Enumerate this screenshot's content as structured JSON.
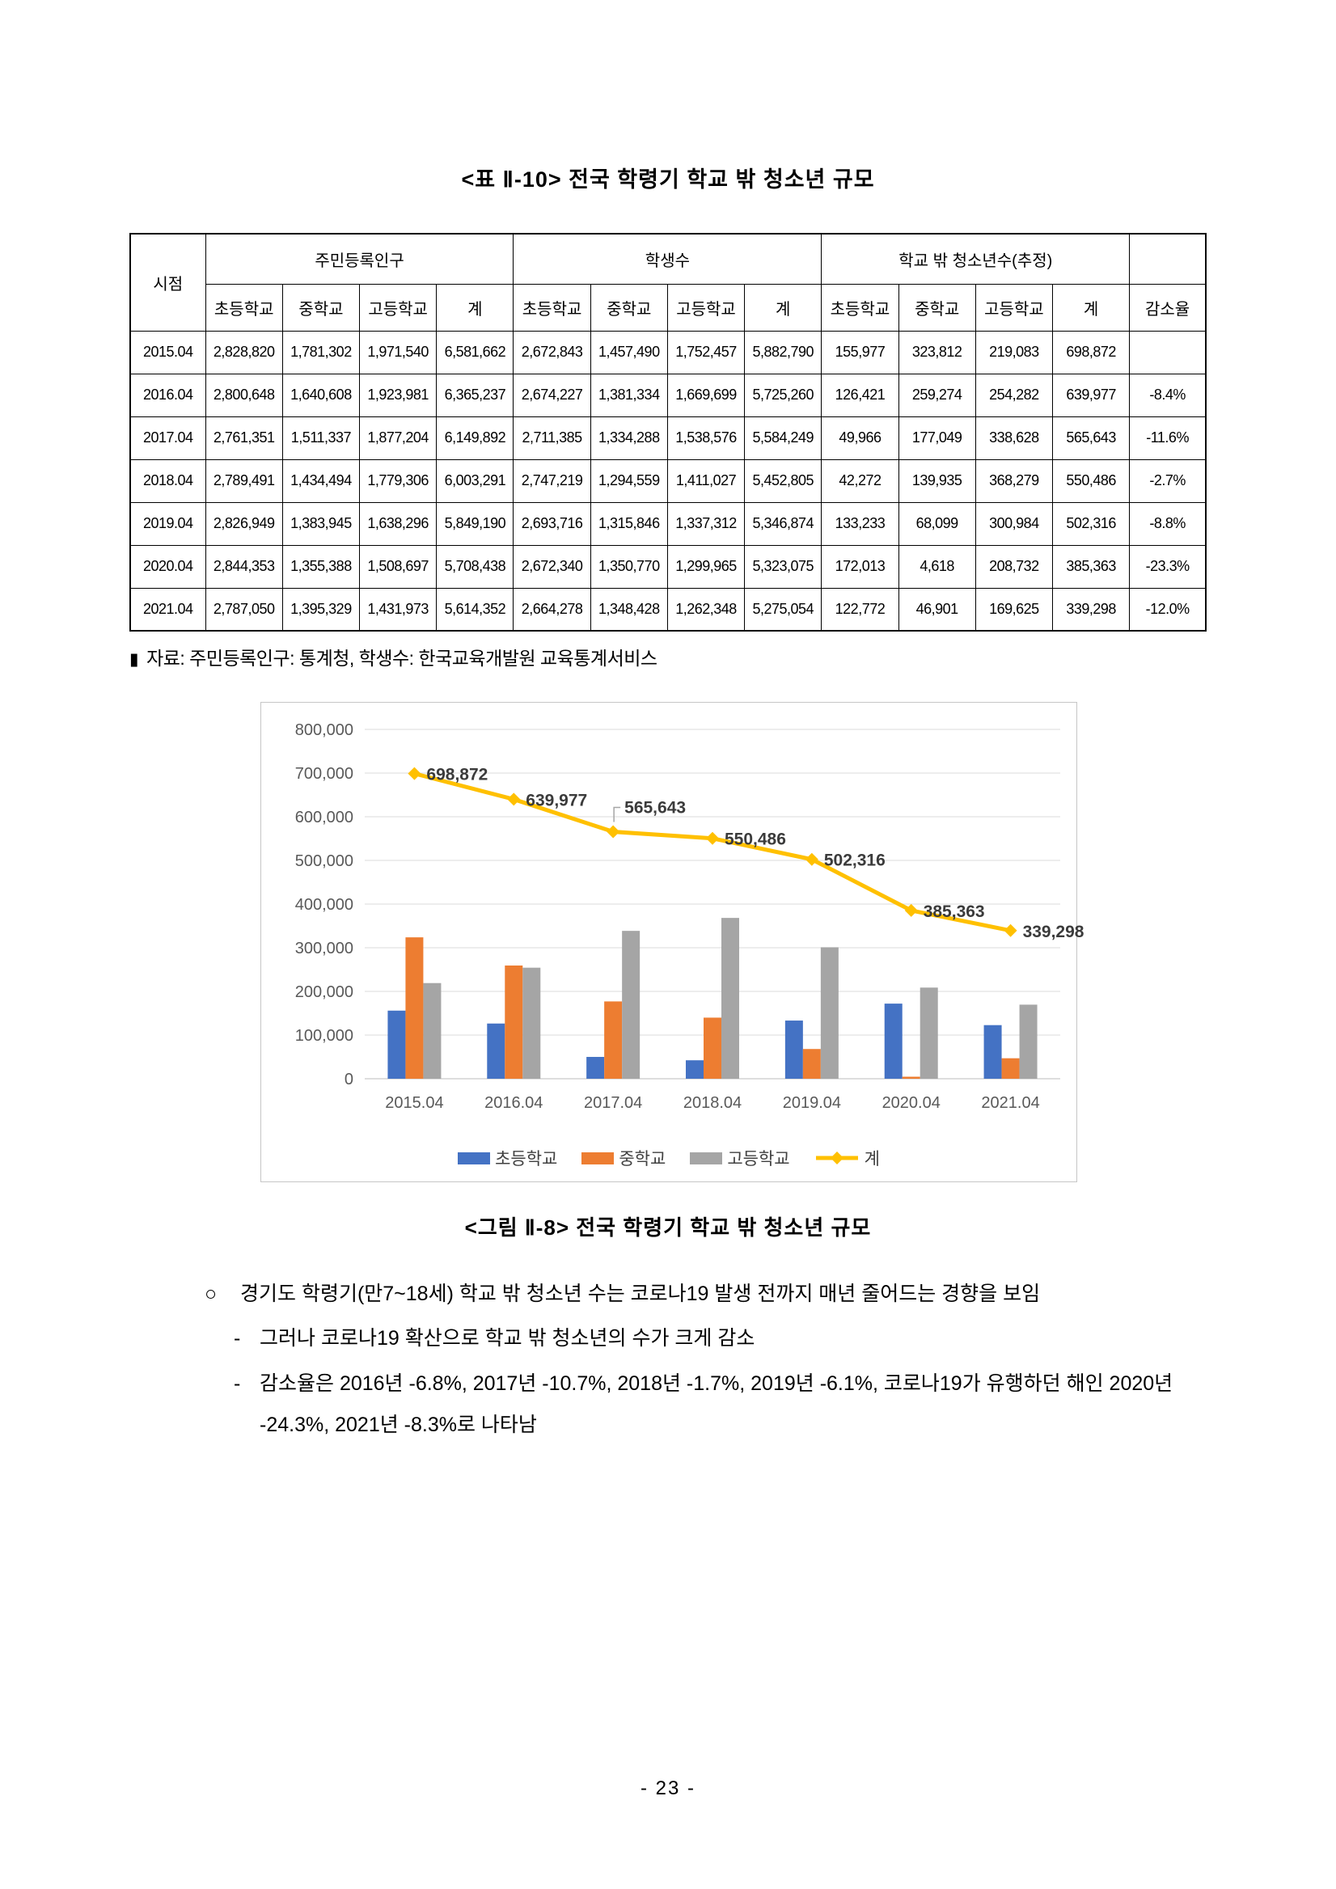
{
  "page": {
    "table_title": "<표 Ⅱ-10> 전국 학령기 학교 밖 청소년 규모",
    "figure_title": "<그림 Ⅱ-8> 전국 학령기 학교 밖 청소년 규모",
    "source_marker": "▮",
    "source_text": "자료: 주민등록인구: 통계청, 학생수: 한국교육개발원 교육통계서비스",
    "page_number": "- 23 -"
  },
  "table": {
    "corner_header": "시점",
    "groups": [
      {
        "label": "주민등록인구",
        "cols": [
          "초등학교",
          "중학교",
          "고등학교",
          "계"
        ]
      },
      {
        "label": "학생수",
        "cols": [
          "초등학교",
          "중학교",
          "고등학교",
          "계"
        ]
      },
      {
        "label": "학교 밖 청소년수(추정)",
        "cols": [
          "초등학교",
          "중학교",
          "고등학교",
          "계"
        ]
      }
    ],
    "extra_col": "감소율",
    "rows": [
      [
        "2015.04",
        "2,828,820",
        "1,781,302",
        "1,971,540",
        "6,581,662",
        "2,672,843",
        "1,457,490",
        "1,752,457",
        "5,882,790",
        "155,977",
        "323,812",
        "219,083",
        "698,872",
        ""
      ],
      [
        "2016.04",
        "2,800,648",
        "1,640,608",
        "1,923,981",
        "6,365,237",
        "2,674,227",
        "1,381,334",
        "1,669,699",
        "5,725,260",
        "126,421",
        "259,274",
        "254,282",
        "639,977",
        "-8.4%"
      ],
      [
        "2017.04",
        "2,761,351",
        "1,511,337",
        "1,877,204",
        "6,149,892",
        "2,711,385",
        "1,334,288",
        "1,538,576",
        "5,584,249",
        "49,966",
        "177,049",
        "338,628",
        "565,643",
        "-11.6%"
      ],
      [
        "2018.04",
        "2,789,491",
        "1,434,494",
        "1,779,306",
        "6,003,291",
        "2,747,219",
        "1,294,559",
        "1,411,027",
        "5,452,805",
        "42,272",
        "139,935",
        "368,279",
        "550,486",
        "-2.7%"
      ],
      [
        "2019.04",
        "2,826,949",
        "1,383,945",
        "1,638,296",
        "5,849,190",
        "2,693,716",
        "1,315,846",
        "1,337,312",
        "5,346,874",
        "133,233",
        "68,099",
        "300,984",
        "502,316",
        "-8.8%"
      ],
      [
        "2020.04",
        "2,844,353",
        "1,355,388",
        "1,508,697",
        "5,708,438",
        "2,672,340",
        "1,350,770",
        "1,299,965",
        "5,323,075",
        "172,013",
        "4,618",
        "208,732",
        "385,363",
        "-23.3%"
      ],
      [
        "2021.04",
        "2,787,050",
        "1,395,329",
        "1,431,973",
        "5,614,352",
        "2,664,278",
        "1,348,428",
        "1,262,348",
        "5,275,054",
        "122,772",
        "46,901",
        "169,625",
        "339,298",
        "-12.0%"
      ]
    ]
  },
  "chart_data": {
    "type": "bar+line",
    "categories": [
      "2015.04",
      "2016.04",
      "2017.04",
      "2018.04",
      "2019.04",
      "2020.04",
      "2021.04"
    ],
    "series": [
      {
        "name": "초등학교",
        "kind": "bar",
        "color": "#4472C4",
        "values": [
          155977,
          126421,
          49966,
          42272,
          133233,
          172013,
          122772
        ]
      },
      {
        "name": "중학교",
        "kind": "bar",
        "color": "#ED7D31",
        "values": [
          323812,
          259274,
          177049,
          139935,
          68099,
          4618,
          46901
        ]
      },
      {
        "name": "고등학교",
        "kind": "bar",
        "color": "#A5A5A5",
        "values": [
          219083,
          254282,
          338628,
          368279,
          300984,
          208732,
          169625
        ]
      },
      {
        "name": "계",
        "kind": "line",
        "color": "#FFC000",
        "values": [
          698872,
          639977,
          565643,
          550486,
          502316,
          385363,
          339298
        ],
        "point_labels": [
          "698,872",
          "639,977",
          "565,643",
          "550,486",
          "502,316",
          "385,363",
          "339,298"
        ]
      }
    ],
    "ylim": [
      0,
      800000
    ],
    "ytick_step": 100000,
    "ytick_labels": [
      "0",
      "100,000",
      "200,000",
      "300,000",
      "400,000",
      "500,000",
      "600,000",
      "700,000",
      "800,000"
    ],
    "grid": true,
    "legend_position": "bottom",
    "axis_text_color": "#595959",
    "label_text_color": "#3b3b3b"
  },
  "body_text": {
    "bullets": [
      {
        "marker": "○",
        "text": "경기도 학령기(만7~18세) 학교 밖 청소년 수는 코로나19 발생 전까지 매년 줄어드는 경향을 보임"
      },
      {
        "marker": "-",
        "text": "그러나 코로나19 확산으로 학교 밖 청소년의 수가 크게 감소"
      },
      {
        "marker": "-",
        "text": "감소율은 2016년 -6.8%, 2017년 -10.7%, 2018년 -1.7%, 2019년 -6.1%, 코로나19가 유행하던 해인 2020년 -24.3%, 2021년 -8.3%로 나타남"
      }
    ]
  }
}
